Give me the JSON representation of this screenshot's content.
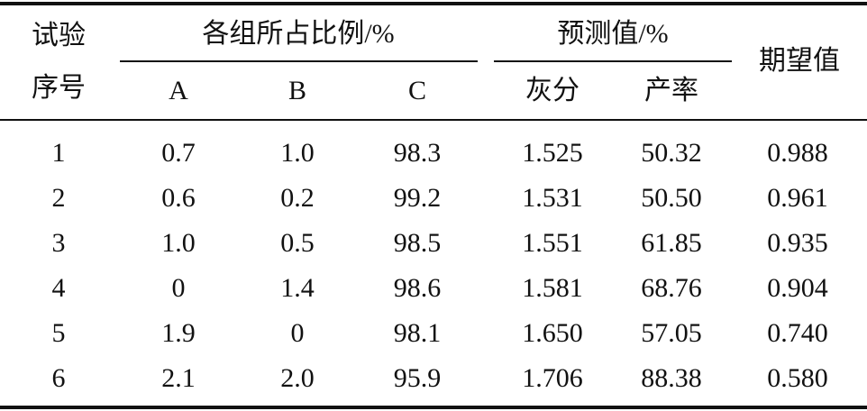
{
  "table": {
    "header": {
      "id": "试验序号",
      "group": "各组所占比例/%",
      "predict": "预测值/%",
      "expect": "期望值",
      "sub": [
        "A",
        "B",
        "C",
        "灰分",
        "产率"
      ]
    },
    "rows": [
      [
        "1",
        "0.7",
        "1.0",
        "98.3",
        "1.525",
        "50.32",
        "0.988"
      ],
      [
        "2",
        "0.6",
        "0.2",
        "99.2",
        "1.531",
        "50.50",
        "0.961"
      ],
      [
        "3",
        "1.0",
        "0.5",
        "98.5",
        "1.551",
        "61.85",
        "0.935"
      ],
      [
        "4",
        "0",
        "1.4",
        "98.6",
        "1.581",
        "68.76",
        "0.904"
      ],
      [
        "5",
        "1.9",
        "0",
        "98.1",
        "1.650",
        "57.05",
        "0.740"
      ],
      [
        "6",
        "2.1",
        "2.0",
        "95.9",
        "1.706",
        "88.38",
        "0.580"
      ]
    ]
  }
}
